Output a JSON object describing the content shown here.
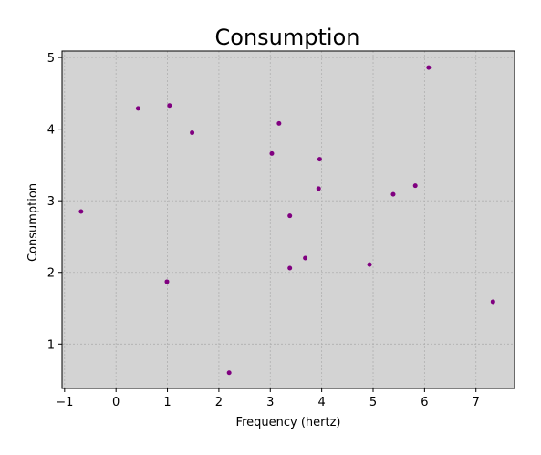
{
  "chart_data": {
    "type": "scatter",
    "title": "Consumption",
    "xlabel": "Frequency (hertz)",
    "ylabel": "Consumption",
    "xlim": [
      -1.05,
      7.75
    ],
    "ylim": [
      0.38,
      5.09
    ],
    "xticks": [
      -1,
      0,
      1,
      2,
      3,
      4,
      5,
      6,
      7
    ],
    "yticks": [
      1,
      2,
      3,
      4,
      5
    ],
    "grid": true,
    "background_color": "#d3d3d3",
    "marker_color": "#800080",
    "series": [
      {
        "x": [
          -0.68,
          0.43,
          1.04,
          1.48,
          3.03,
          3.17,
          3.96,
          3.94,
          5.39,
          5.82,
          6.08,
          3.38,
          3.68,
          3.38,
          4.93,
          0.99,
          2.2,
          7.33
        ],
        "y": [
          2.85,
          4.29,
          4.33,
          3.95,
          3.66,
          4.08,
          3.58,
          3.17,
          3.09,
          3.21,
          4.86,
          2.79,
          2.2,
          2.06,
          2.11,
          1.87,
          0.6,
          1.59
        ]
      }
    ]
  }
}
